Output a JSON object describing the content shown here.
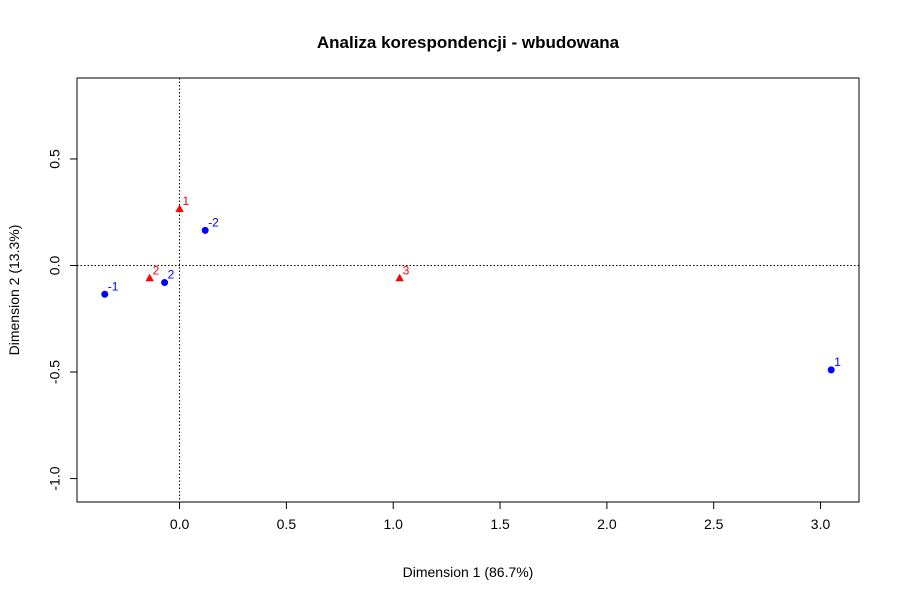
{
  "chart_data": {
    "type": "scatter",
    "title": "Analiza korespondencji - wbudowana",
    "xlabel": "Dimension 1 (86.7%)",
    "ylabel": "Dimension 2 (13.3%)",
    "xlim": [
      -0.48,
      3.18
    ],
    "ylim": [
      -1.11,
      0.88
    ],
    "x_ticks": [
      0.0,
      0.5,
      1.0,
      1.5,
      2.0,
      2.5,
      3.0
    ],
    "x_tick_labels": [
      "0.0",
      "0.5",
      "1.0",
      "1.5",
      "2.0",
      "2.5",
      "3.0"
    ],
    "y_ticks": [
      0.5,
      0.0,
      -0.5,
      -1.0
    ],
    "y_tick_labels": [
      "0.5",
      "0.0",
      "-0.5",
      "-1.0"
    ],
    "reference_lines": {
      "x": 0,
      "y": 0,
      "style": "dotted"
    },
    "grid": false,
    "legend": "none",
    "series": [
      {
        "marker": "circle",
        "color": "#0000ff",
        "points": [
          {
            "label": "-1",
            "x": -0.35,
            "y": -0.135
          },
          {
            "label": "2",
            "x": -0.07,
            "y": -0.08
          },
          {
            "label": "-2",
            "x": 0.12,
            "y": 0.165
          },
          {
            "label": "1",
            "x": 3.05,
            "y": -0.49
          }
        ]
      },
      {
        "marker": "triangle",
        "color": "#ff0000",
        "points": [
          {
            "label": "1",
            "x": 0.0,
            "y": 0.265
          },
          {
            "label": "2",
            "x": -0.14,
            "y": -0.06
          },
          {
            "label": "3",
            "x": 1.03,
            "y": -0.06
          }
        ]
      }
    ]
  }
}
